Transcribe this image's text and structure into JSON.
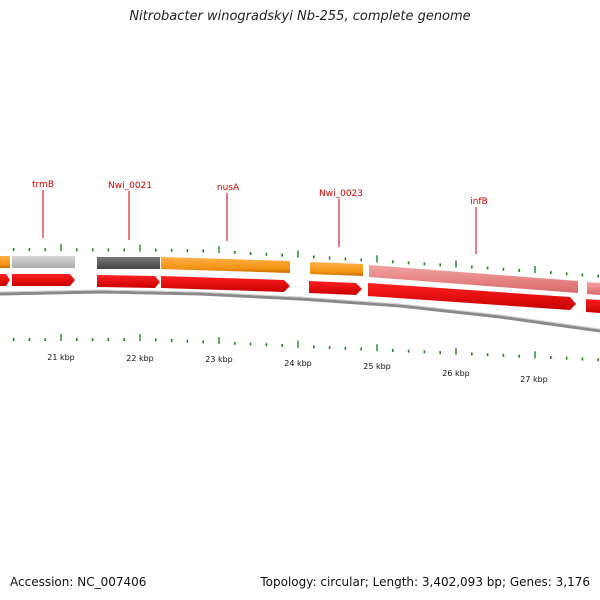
{
  "title": "Nitrobacter winogradskyi Nb-255, complete genome",
  "footer": {
    "accession_text": "Accession: NC_007406",
    "topology_text": "Topology: circular; Length: 3,402,093 bp; Genes: 3,176"
  },
  "colors": {
    "label": "#cc0000",
    "tick": "#1a8a1a",
    "cds": "#ee0000",
    "backbone": "#808080",
    "orange": "#f39313",
    "light_grey": "#c4c4c4",
    "dark_grey": "#666666",
    "pink": "#ee8888"
  },
  "kbp_labels": [
    "21 kbp",
    "22 kbp",
    "23 kbp",
    "24 kbp",
    "25 kbp",
    "26 kbp",
    "27 kbp"
  ],
  "gene_labels": [
    "trmB",
    "Nwi_0021",
    "nusA",
    "Nwi_0023",
    "infB"
  ]
}
